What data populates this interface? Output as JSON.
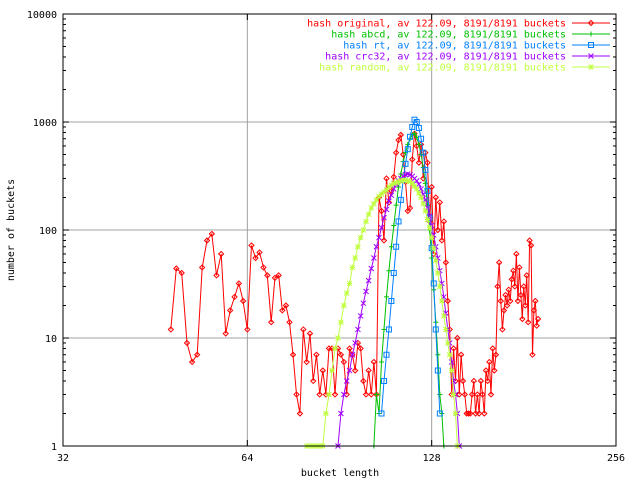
{
  "chart_data": {
    "type": "line",
    "xlabel": "bucket length",
    "ylabel": "number of buckets",
    "x_scale": "log2",
    "y_scale": "log10",
    "xlim": [
      32,
      256
    ],
    "ylim": [
      1,
      10000
    ],
    "x_ticks": [
      "32",
      "64",
      "128",
      "256"
    ],
    "y_ticks": [
      "1",
      "10",
      "100",
      "1000",
      "10000"
    ],
    "grid": true,
    "legend_position": "top-right",
    "series": [
      {
        "name": "hash original, av 122.09, 8191/8191 buckets",
        "color": "#ff0000",
        "marker": "diamond",
        "points": [
          [
            48,
            12
          ],
          [
            49,
            44
          ],
          [
            50,
            40
          ],
          [
            51,
            9
          ],
          [
            52,
            6
          ],
          [
            53,
            7
          ],
          [
            54,
            45
          ],
          [
            55,
            80
          ],
          [
            56,
            92
          ],
          [
            57,
            38
          ],
          [
            58,
            60
          ],
          [
            59,
            11
          ],
          [
            60,
            18
          ],
          [
            61,
            24
          ],
          [
            62,
            32
          ],
          [
            63,
            22
          ],
          [
            64,
            12
          ],
          [
            65,
            72
          ],
          [
            66,
            55
          ],
          [
            67,
            62
          ],
          [
            68,
            45
          ],
          [
            69,
            38
          ],
          [
            70,
            14
          ],
          [
            71,
            36
          ],
          [
            72,
            38
          ],
          [
            73,
            18
          ],
          [
            74,
            20
          ],
          [
            75,
            14
          ],
          [
            76,
            7
          ],
          [
            77,
            3
          ],
          [
            78,
            2
          ],
          [
            79,
            12
          ],
          [
            80,
            6
          ],
          [
            81,
            11
          ],
          [
            82,
            4
          ],
          [
            83,
            7
          ],
          [
            84,
            3
          ],
          [
            85,
            5
          ],
          [
            86,
            3
          ],
          [
            87,
            8
          ],
          [
            88,
            8
          ],
          [
            89,
            3
          ],
          [
            90,
            8
          ],
          [
            91,
            7
          ],
          [
            92,
            6
          ],
          [
            93,
            3
          ],
          [
            94,
            8
          ],
          [
            95,
            7
          ],
          [
            96,
            5
          ],
          [
            97,
            9
          ],
          [
            98,
            8
          ],
          [
            99,
            4
          ],
          [
            100,
            3
          ],
          [
            101,
            5
          ],
          [
            102,
            3
          ],
          [
            103,
            6
          ],
          [
            104,
            3
          ],
          [
            105,
            200
          ],
          [
            106,
            150
          ],
          [
            107,
            80
          ],
          [
            108,
            300
          ],
          [
            109,
            180
          ],
          [
            110,
            230
          ],
          [
            111,
            310
          ],
          [
            112,
            520
          ],
          [
            113,
            680
          ],
          [
            114,
            760
          ],
          [
            115,
            500
          ],
          [
            116,
            280
          ],
          [
            117,
            150
          ],
          [
            118,
            160
          ],
          [
            119,
            450
          ],
          [
            120,
            780
          ],
          [
            121,
            600
          ],
          [
            122,
            420
          ],
          [
            123,
            620
          ],
          [
            124,
            300
          ],
          [
            125,
            520
          ],
          [
            126,
            420
          ],
          [
            127,
            120
          ],
          [
            128,
            250
          ],
          [
            129,
            60
          ],
          [
            130,
            200
          ],
          [
            131,
            100
          ],
          [
            132,
            180
          ],
          [
            133,
            80
          ],
          [
            134,
            120
          ],
          [
            135,
            50
          ],
          [
            136,
            22
          ],
          [
            137,
            12
          ],
          [
            138,
            3
          ],
          [
            139,
            8
          ],
          [
            140,
            4
          ],
          [
            141,
            10
          ],
          [
            142,
            3
          ],
          [
            143,
            7
          ],
          [
            144,
            4
          ],
          [
            145,
            3
          ],
          [
            146,
            2
          ],
          [
            147,
            2
          ],
          [
            148,
            2
          ],
          [
            149,
            3
          ],
          [
            150,
            4
          ],
          [
            151,
            2
          ],
          [
            152,
            3
          ],
          [
            153,
            2
          ],
          [
            154,
            4
          ],
          [
            155,
            3
          ],
          [
            156,
            2
          ],
          [
            157,
            5
          ],
          [
            158,
            4
          ],
          [
            159,
            6
          ],
          [
            160,
            3
          ],
          [
            161,
            8
          ],
          [
            162,
            5
          ],
          [
            163,
            7
          ],
          [
            164,
            30
          ],
          [
            165,
            50
          ],
          [
            166,
            22
          ],
          [
            167,
            12
          ],
          [
            168,
            18
          ],
          [
            169,
            25
          ],
          [
            170,
            20
          ],
          [
            171,
            28
          ],
          [
            172,
            22
          ],
          [
            173,
            35
          ],
          [
            174,
            42
          ],
          [
            175,
            30
          ],
          [
            176,
            60
          ],
          [
            177,
            22
          ],
          [
            178,
            45
          ],
          [
            179,
            25
          ],
          [
            180,
            15
          ],
          [
            181,
            30
          ],
          [
            182,
            20
          ],
          [
            183,
            38
          ],
          [
            184,
            14
          ],
          [
            185,
            80
          ],
          [
            186,
            72
          ],
          [
            187,
            7
          ],
          [
            188,
            18
          ],
          [
            189,
            22
          ],
          [
            190,
            13
          ],
          [
            191,
            15
          ]
        ]
      },
      {
        "name": "hash abcd, av 122.09, 8191/8191 buckets",
        "color": "#00c000",
        "marker": "plus",
        "points": [
          [
            103,
            1
          ],
          [
            104,
            3
          ],
          [
            105,
            2
          ],
          [
            106,
            6
          ],
          [
            107,
            12
          ],
          [
            108,
            24
          ],
          [
            109,
            42
          ],
          [
            110,
            70
          ],
          [
            111,
            110
          ],
          [
            112,
            170
          ],
          [
            113,
            250
          ],
          [
            114,
            330
          ],
          [
            115,
            430
          ],
          [
            116,
            520
          ],
          [
            117,
            620
          ],
          [
            118,
            700
          ],
          [
            119,
            760
          ],
          [
            120,
            780
          ],
          [
            121,
            720
          ],
          [
            122,
            620
          ],
          [
            123,
            500
          ],
          [
            124,
            380
          ],
          [
            125,
            270
          ],
          [
            126,
            170
          ],
          [
            127,
            100
          ],
          [
            128,
            55
          ],
          [
            129,
            28
          ],
          [
            130,
            14
          ],
          [
            131,
            7
          ],
          [
            132,
            3
          ],
          [
            133,
            2
          ],
          [
            134,
            1
          ]
        ]
      },
      {
        "name": "hash rt, av 122.09, 8191/8191 buckets",
        "color": "#0080ff",
        "marker": "square",
        "points": [
          [
            106,
            2
          ],
          [
            107,
            4
          ],
          [
            108,
            7
          ],
          [
            109,
            12
          ],
          [
            110,
            22
          ],
          [
            111,
            40
          ],
          [
            112,
            70
          ],
          [
            113,
            120
          ],
          [
            114,
            190
          ],
          [
            115,
            290
          ],
          [
            116,
            410
          ],
          [
            117,
            560
          ],
          [
            118,
            730
          ],
          [
            119,
            900
          ],
          [
            120,
            1050
          ],
          [
            121,
            1000
          ],
          [
            122,
            880
          ],
          [
            123,
            700
          ],
          [
            124,
            520
          ],
          [
            125,
            360
          ],
          [
            126,
            230
          ],
          [
            127,
            130
          ],
          [
            128,
            68
          ],
          [
            129,
            32
          ],
          [
            130,
            12
          ],
          [
            131,
            5
          ],
          [
            132,
            2
          ]
        ]
      },
      {
        "name": "hash crc32, av 122.09, 8191/8191 buckets",
        "color": "#a000ff",
        "marker": "x",
        "points": [
          [
            90,
            1
          ],
          [
            91,
            2
          ],
          [
            92,
            3
          ],
          [
            93,
            4
          ],
          [
            94,
            5
          ],
          [
            95,
            7
          ],
          [
            96,
            9
          ],
          [
            97,
            12
          ],
          [
            98,
            16
          ],
          [
            99,
            21
          ],
          [
            100,
            27
          ],
          [
            101,
            34
          ],
          [
            102,
            44
          ],
          [
            103,
            55
          ],
          [
            104,
            70
          ],
          [
            105,
            85
          ],
          [
            106,
            105
          ],
          [
            107,
            130
          ],
          [
            108,
            155
          ],
          [
            109,
            185
          ],
          [
            110,
            210
          ],
          [
            111,
            240
          ],
          [
            112,
            265
          ],
          [
            113,
            285
          ],
          [
            114,
            300
          ],
          [
            115,
            315
          ],
          [
            116,
            325
          ],
          [
            117,
            330
          ],
          [
            118,
            325
          ],
          [
            119,
            315
          ],
          [
            120,
            300
          ],
          [
            121,
            285
          ],
          [
            122,
            265
          ],
          [
            123,
            240
          ],
          [
            124,
            215
          ],
          [
            125,
            190
          ],
          [
            126,
            160
          ],
          [
            127,
            135
          ],
          [
            128,
            110
          ],
          [
            129,
            90
          ],
          [
            130,
            70
          ],
          [
            131,
            55
          ],
          [
            132,
            42
          ],
          [
            133,
            32
          ],
          [
            134,
            24
          ],
          [
            135,
            17
          ],
          [
            136,
            12
          ],
          [
            137,
            9
          ],
          [
            138,
            6
          ],
          [
            139,
            4
          ],
          [
            140,
            3
          ],
          [
            141,
            2
          ],
          [
            142,
            1
          ]
        ]
      },
      {
        "name": "hash random, av 122.09, 8191/8191 buckets",
        "color": "#c0ff40",
        "marker": "star",
        "points": [
          [
            80,
            1
          ],
          [
            81,
            1
          ],
          [
            82,
            1
          ],
          [
            83,
            1
          ],
          [
            84,
            1
          ],
          [
            85,
            1
          ],
          [
            86,
            2
          ],
          [
            87,
            3
          ],
          [
            88,
            5
          ],
          [
            89,
            8
          ],
          [
            90,
            10
          ],
          [
            91,
            14
          ],
          [
            92,
            20
          ],
          [
            93,
            26
          ],
          [
            94,
            32
          ],
          [
            95,
            45
          ],
          [
            96,
            55
          ],
          [
            97,
            70
          ],
          [
            98,
            85
          ],
          [
            99,
            100
          ],
          [
            100,
            120
          ],
          [
            101,
            140
          ],
          [
            102,
            160
          ],
          [
            103,
            175
          ],
          [
            104,
            190
          ],
          [
            105,
            205
          ],
          [
            106,
            215
          ],
          [
            107,
            225
          ],
          [
            108,
            235
          ],
          [
            109,
            250
          ],
          [
            110,
            260
          ],
          [
            111,
            270
          ],
          [
            112,
            275
          ],
          [
            113,
            280
          ],
          [
            114,
            285
          ],
          [
            115,
            290
          ],
          [
            116,
            290
          ],
          [
            117,
            285
          ],
          [
            118,
            280
          ],
          [
            119,
            270
          ],
          [
            120,
            255
          ],
          [
            121,
            240
          ],
          [
            122,
            220
          ],
          [
            123,
            200
          ],
          [
            124,
            175
          ],
          [
            125,
            150
          ],
          [
            126,
            125
          ],
          [
            127,
            105
          ],
          [
            128,
            85
          ],
          [
            129,
            68
          ],
          [
            130,
            52
          ],
          [
            131,
            40
          ],
          [
            132,
            30
          ],
          [
            133,
            22
          ],
          [
            134,
            16
          ],
          [
            135,
            12
          ],
          [
            136,
            9
          ],
          [
            137,
            7
          ],
          [
            138,
            5
          ],
          [
            139,
            3
          ],
          [
            140,
            2
          ],
          [
            141,
            1
          ]
        ]
      }
    ]
  }
}
